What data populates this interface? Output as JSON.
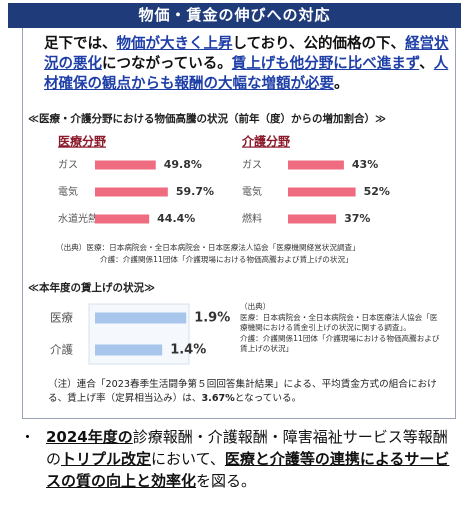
{
  "header": {
    "title": "物価・賃金の伸びへの対応"
  },
  "intro": [
    "足下では、",
    "物価が大きく上昇",
    "しており、公的価格の下、",
    "経営状況の悪化",
    "につながっている。",
    "賃上げも他分野に比べ進まず",
    "、",
    "人材確保の観点からも報酬の大幅な増額が必要",
    "。"
  ],
  "price_section_title": "≪医療・介護分野における物価高騰の状況（前年（度）からの増加割合）≫",
  "price_source": [
    "（出典）医療：日本病院会・全日本病院会・日本医療法人協会「医療機関経営状況調査」",
    "介護：介護関係11団体「介護現場における物価高騰および賃上げの状況」"
  ],
  "wage_source": [
    "（出典）",
    "医療：日本病院会・全日本病院会・日本医療法人協会「医療機関における賃金引上げの状況に関する調査」。",
    "介護：介護関係11団体「介護現場における物価高騰および賃上げの状況」"
  ],
  "note": [
    "（注）連合「2023春季生活闘争第５回回答集計結果」による、平均賃金方式の組合における、賃上げ率（定昇相当込み）は、",
    "3.67%",
    "となっている。"
  ],
  "bullet": [
    "2024年度の",
    "診療報酬・介護報酬・障害福祉サービス等報酬の",
    "トリプル改定",
    "において、",
    "医療と介護等の連携によるサービスの質の向上と効率化",
    "を図る。"
  ],
  "chart_data": [
    {
      "type": "bar",
      "orientation": "horizontal",
      "title": "医療分野",
      "categories": [
        "ガス",
        "電気",
        "水道光熱"
      ],
      "values": [
        49.8,
        59.7,
        44.4
      ],
      "value_labels": [
        "49.8%",
        "59.7%",
        "44.4%"
      ],
      "color": "#ef6b7f"
    },
    {
      "type": "bar",
      "orientation": "horizontal",
      "title": "介護分野",
      "categories": [
        "ガス",
        "電気",
        "燃料"
      ],
      "values": [
        43,
        52,
        37
      ],
      "value_labels": [
        "43%",
        "52%",
        "37%"
      ],
      "color": "#ef6b7f"
    },
    {
      "type": "bar",
      "orientation": "horizontal",
      "title": "≪本年度の賃上げの状況≫",
      "categories": [
        "医療",
        "介護"
      ],
      "values": [
        1.9,
        1.4
      ],
      "value_labels": [
        "1.9%",
        "1.4%"
      ],
      "color": "#a8c6ec"
    }
  ]
}
